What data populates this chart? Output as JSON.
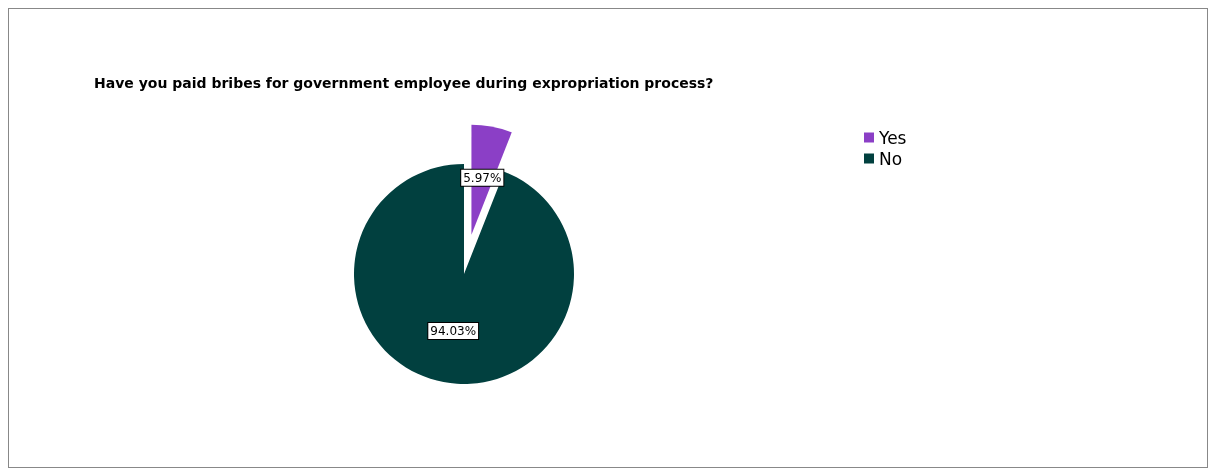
{
  "chart_data": {
    "type": "pie",
    "title": "Have you paid bribes for government employee during expropriation process?",
    "categories": [
      "Yes",
      "No"
    ],
    "values": [
      5.97,
      94.03
    ],
    "colors": [
      "#8b3fc6",
      "#01403f"
    ],
    "value_labels": [
      "5.97%",
      "94.03%"
    ],
    "legend": "top right"
  }
}
